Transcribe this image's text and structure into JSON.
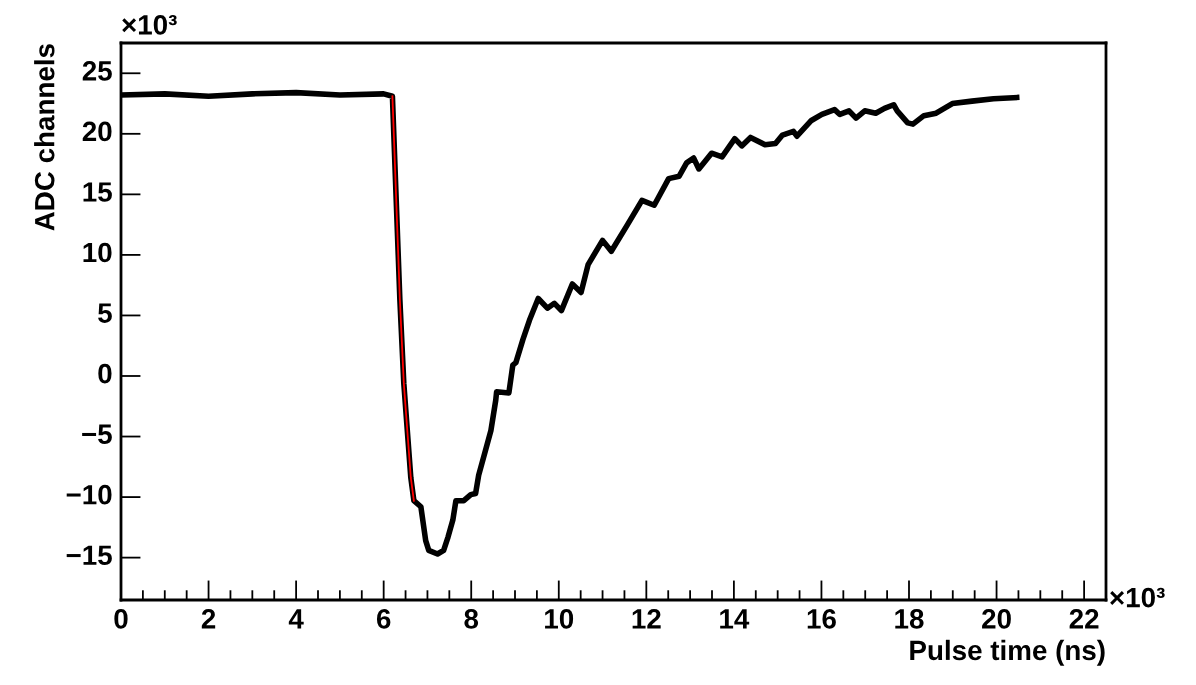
{
  "chart_data": {
    "type": "line",
    "xlabel": "Pulse time (ns)",
    "ylabel": "ADC channels",
    "xlim": [
      0,
      22.5
    ],
    "ylim": [
      -18.5,
      27.5
    ],
    "xticks": [
      0,
      2,
      4,
      6,
      8,
      10,
      12,
      14,
      16,
      18,
      20,
      22
    ],
    "yticks": [
      -15,
      -10,
      -5,
      0,
      5,
      10,
      15,
      20,
      25
    ],
    "grid": false,
    "legend": false,
    "marker": "none",
    "line_style": "solid",
    "annotations": [
      "×10³",
      "×10³"
    ],
    "series": [
      {
        "color": "#000000",
        "x": [
          0,
          1,
          2,
          3,
          4,
          5,
          6,
          6.2,
          6.37,
          6.46,
          6.62,
          6.69,
          6.85,
          6.96,
          7.03,
          7.23,
          7.37,
          7.47,
          7.58,
          7.65,
          7.83,
          7.99,
          8.1,
          8.17,
          8.33,
          8.45,
          8.56,
          8.58,
          8.86,
          8.95,
          9.02,
          9.18,
          9.33,
          9.53,
          9.74,
          9.9,
          10.06,
          10.31,
          10.51,
          10.67,
          11.0,
          11.2,
          11.57,
          11.9,
          12.18,
          12.51,
          12.75,
          12.92,
          13.08,
          13.2,
          13.49,
          13.73,
          14.02,
          14.18,
          14.38,
          14.71,
          14.95,
          15.11,
          15.36,
          15.44,
          15.77,
          16.01,
          16.3,
          16.42,
          16.63,
          16.79,
          16.99,
          17.24,
          17.44,
          17.65,
          17.73,
          17.97,
          18.09,
          18.34,
          18.62,
          18.99,
          19.44,
          19.93,
          20.46
        ],
        "values": [
          23.2,
          23.3,
          23.1,
          23.3,
          23.4,
          23.2,
          23.3,
          23.1,
          6.3,
          -0.6,
          -8.4,
          -10.3,
          -10.8,
          -13.6,
          -14.4,
          -14.7,
          -14.4,
          -13.3,
          -11.9,
          -10.3,
          -10.3,
          -9.8,
          -9.7,
          -8.2,
          -6.1,
          -4.5,
          -2.0,
          -1.3,
          -1.4,
          0.9,
          1.1,
          3.0,
          4.6,
          6.4,
          5.6,
          6.0,
          5.4,
          7.6,
          6.9,
          9.2,
          11.2,
          10.3,
          12.5,
          14.5,
          14.1,
          16.3,
          16.5,
          17.6,
          18.0,
          17.1,
          18.4,
          18.1,
          19.6,
          19.0,
          19.7,
          19.1,
          19.2,
          19.9,
          20.2,
          19.8,
          21.1,
          21.6,
          22.0,
          21.6,
          21.9,
          21.3,
          21.9,
          21.7,
          22.1,
          22.4,
          21.9,
          20.9,
          20.8,
          21.5,
          21.7,
          22.5,
          22.7,
          22.9,
          23.0
        ]
      },
      {
        "color": "#ff0000",
        "x": [
          6.2,
          6.37,
          6.46,
          6.62,
          6.69
        ],
        "values": [
          23.1,
          6.3,
          -0.6,
          -8.4,
          -10.3
        ]
      }
    ]
  }
}
